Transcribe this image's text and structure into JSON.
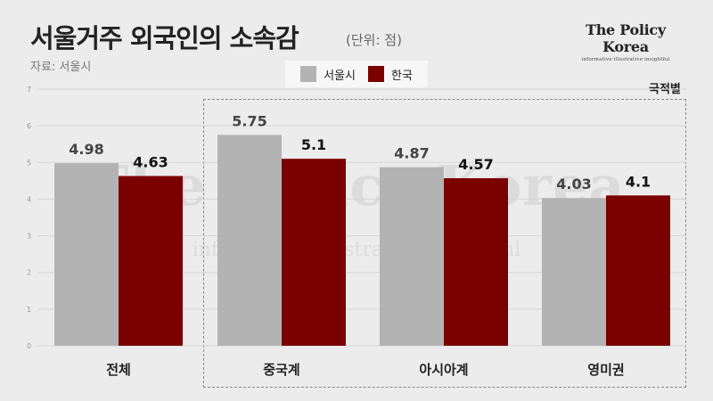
{
  "header": {
    "title": "서울거주 외국인의 소속감",
    "unit": "(단위: 점)",
    "source": "자료: 서울시"
  },
  "brand": {
    "name": "The Policy Korea",
    "tagline": "informative·illustrative·insightful"
  },
  "group_label": "국적별",
  "colors": {
    "seoul": "#b3b3b3",
    "korea": "#7b0000",
    "background": "#ececec"
  },
  "chart_data": {
    "type": "bar",
    "title": "서울거주 외국인의 소속감",
    "ylabel": "",
    "xlabel": "",
    "ylim": [
      0,
      7
    ],
    "yticks": [
      0,
      1,
      2,
      3,
      4,
      5,
      6,
      7
    ],
    "grid": true,
    "legend_position": "top-center",
    "categories": [
      "전체",
      "중국계",
      "아시아계",
      "영미권"
    ],
    "series": [
      {
        "name": "서울시",
        "values": [
          4.98,
          5.75,
          4.87,
          4.03
        ],
        "labels": [
          "4.98",
          "5.75",
          "4.87",
          "4.03"
        ]
      },
      {
        "name": "한국",
        "values": [
          4.63,
          5.1,
          4.57,
          4.1
        ],
        "labels": [
          "4.63",
          "5.1",
          "4.57",
          "4.1"
        ]
      }
    ]
  }
}
